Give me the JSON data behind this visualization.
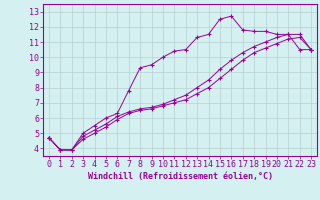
{
  "xlabel": "Windchill (Refroidissement éolien,°C)",
  "background_color": "#d4f0f0",
  "line_color": "#990099",
  "grid_color": "#b8d0d0",
  "xlim": [
    -0.5,
    23.5
  ],
  "ylim": [
    3.5,
    13.5
  ],
  "xticks": [
    0,
    1,
    2,
    3,
    4,
    5,
    6,
    7,
    8,
    9,
    10,
    11,
    12,
    13,
    14,
    15,
    16,
    17,
    18,
    19,
    20,
    21,
    22,
    23
  ],
  "yticks": [
    4,
    5,
    6,
    7,
    8,
    9,
    10,
    11,
    12,
    13
  ],
  "line1_x": [
    0,
    1,
    2,
    3,
    4,
    5,
    6,
    7,
    8,
    9,
    10,
    11,
    12,
    13,
    14,
    15,
    16,
    17,
    18,
    19,
    20,
    21,
    22,
    23
  ],
  "line1_y": [
    4.7,
    3.9,
    3.9,
    5.0,
    5.5,
    6.0,
    6.3,
    7.8,
    9.3,
    9.5,
    10.0,
    10.4,
    10.5,
    11.3,
    11.5,
    12.5,
    12.7,
    11.8,
    11.7,
    11.7,
    11.5,
    11.5,
    10.5,
    10.5
  ],
  "line2_x": [
    0,
    1,
    2,
    3,
    4,
    5,
    6,
    7,
    8,
    9,
    10,
    11,
    12,
    13,
    14,
    15,
    16,
    17,
    18,
    19,
    20,
    21,
    22,
    23
  ],
  "line2_y": [
    4.7,
    3.9,
    3.9,
    4.8,
    5.2,
    5.6,
    6.1,
    6.4,
    6.6,
    6.7,
    6.9,
    7.2,
    7.5,
    8.0,
    8.5,
    9.2,
    9.8,
    10.3,
    10.7,
    11.0,
    11.3,
    11.5,
    11.5,
    10.5
  ],
  "line3_x": [
    0,
    1,
    2,
    3,
    4,
    5,
    6,
    7,
    8,
    9,
    10,
    11,
    12,
    13,
    14,
    15,
    16,
    17,
    18,
    19,
    20,
    21,
    22,
    23
  ],
  "line3_y": [
    4.7,
    3.9,
    3.9,
    4.6,
    5.0,
    5.4,
    5.9,
    6.3,
    6.5,
    6.6,
    6.8,
    7.0,
    7.2,
    7.6,
    8.0,
    8.6,
    9.2,
    9.8,
    10.3,
    10.6,
    10.9,
    11.2,
    11.3,
    10.5
  ],
  "tick_fontsize": 6,
  "xlabel_fontsize": 6
}
